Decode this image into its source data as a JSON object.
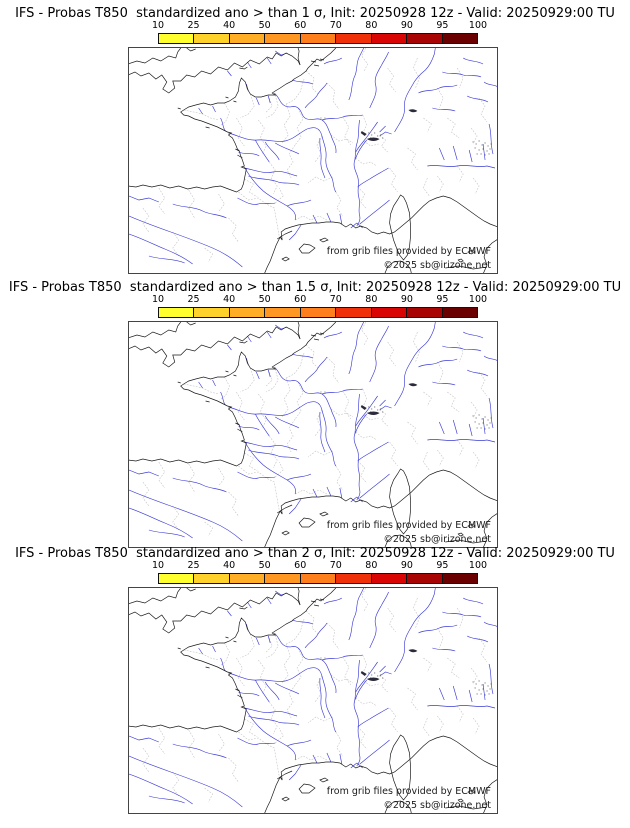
{
  "page": {
    "background": "#ffffff"
  },
  "panels": [
    {
      "title": "IFS - Probas T850  standardized ano > than 1 σ, Init: 20250928 12z - Valid: 20250929:00 TU"
    },
    {
      "title": "IFS - Probas T850  standardized ano > than 1.5 σ, Init: 20250928 12z - Valid: 20250929:00 TU"
    },
    {
      "title": "IFS - Probas T850  standardized ano > than 2 σ, Init: 20250928 12z - Valid: 20250929:00 TU"
    }
  ],
  "colorbar": {
    "ticks": [
      "10",
      "25",
      "40",
      "50",
      "60",
      "70",
      "80",
      "90",
      "95",
      "100"
    ],
    "colors": [
      "#ffff2e",
      "#ffd22b",
      "#ffae26",
      "#ff9722",
      "#ff7f1c",
      "#f03008",
      "#d90505",
      "#a80404",
      "#6b0000"
    ]
  },
  "map": {
    "attribution_line1": "from grib files provided by ECMWF",
    "attribution_line2": "©2025 sb@irizone.net",
    "coastline_color": "#1a1a1a",
    "river_color": "#3a3ad6",
    "admin_boundary_color": "#c3c3c3"
  }
}
